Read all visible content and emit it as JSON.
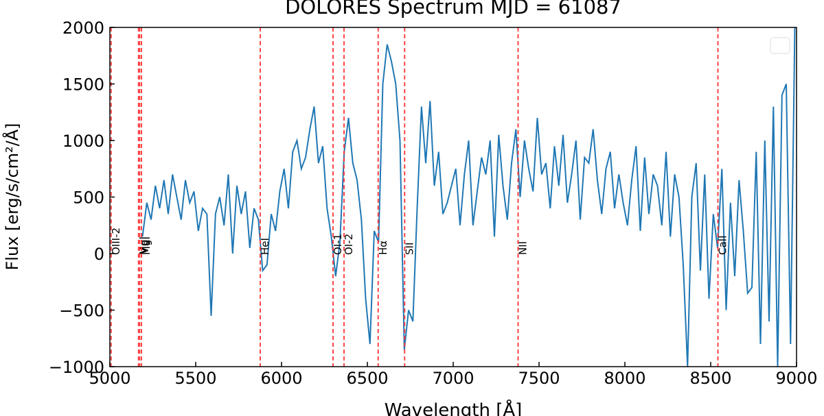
{
  "chart_data": {
    "type": "line",
    "title": "DOLORES Spectrum MJD = 61087",
    "x_label": "Wavelength [Å]",
    "y_label": "Flux [erg/s/cm²/Å]",
    "xlim": [
      5000,
      9000
    ],
    "ylim": [
      -1000,
      2000
    ],
    "xticks": [
      5000,
      5500,
      6000,
      6500,
      7000,
      7500,
      8000,
      8500,
      9000
    ],
    "yticks": [
      {
        "value": -1000,
        "label": "−1000"
      },
      {
        "value": -500,
        "label": "−500"
      },
      0,
      500,
      1000,
      1500,
      2000
    ],
    "x": [
      5190,
      5215,
      5240,
      5265,
      5290,
      5315,
      5340,
      5365,
      5390,
      5415,
      5440,
      5465,
      5490,
      5515,
      5540,
      5565,
      5590,
      5615,
      5640,
      5665,
      5690,
      5715,
      5740,
      5765,
      5790,
      5815,
      5840,
      5865,
      5890,
      5915,
      5940,
      5965,
      5990,
      6015,
      6040,
      6065,
      6090,
      6115,
      6140,
      6165,
      6190,
      6215,
      6240,
      6265,
      6290,
      6315,
      6340,
      6365,
      6390,
      6415,
      6440,
      6465,
      6490,
      6515,
      6540,
      6565,
      6590,
      6615,
      6640,
      6665,
      6690,
      6715,
      6740,
      6765,
      6790,
      6815,
      6840,
      6865,
      6890,
      6915,
      6940,
      6965,
      6990,
      7015,
      7040,
      7065,
      7090,
      7115,
      7140,
      7165,
      7190,
      7215,
      7240,
      7265,
      7290,
      7315,
      7340,
      7365,
      7390,
      7415,
      7440,
      7465,
      7490,
      7515,
      7540,
      7565,
      7590,
      7615,
      7640,
      7665,
      7690,
      7715,
      7740,
      7765,
      7790,
      7815,
      7840,
      7865,
      7890,
      7915,
      7940,
      7965,
      7990,
      8015,
      8040,
      8065,
      8090,
      8115,
      8140,
      8165,
      8190,
      8215,
      8240,
      8265,
      8290,
      8315,
      8340,
      8365,
      8390,
      8415,
      8440,
      8465,
      8490,
      8515,
      8540,
      8565,
      8590,
      8615,
      8640,
      8665,
      8690,
      8715,
      8740,
      8765,
      8790,
      8815,
      8840,
      8865,
      8890,
      8915,
      8940,
      8965,
      8990
    ],
    "series": [
      {
        "color": "#1f77b4",
        "values": [
          150,
          450,
          300,
          600,
          400,
          650,
          350,
          700,
          500,
          300,
          650,
          450,
          550,
          200,
          400,
          350,
          -550,
          350,
          500,
          250,
          700,
          0,
          600,
          350,
          550,
          50,
          400,
          300,
          -150,
          -100,
          350,
          200,
          550,
          750,
          400,
          900,
          1000,
          750,
          850,
          1100,
          1300,
          800,
          950,
          400,
          150,
          -200,
          100,
          900,
          1200,
          800,
          650,
          300,
          -400,
          -800,
          200,
          100,
          1500,
          1850,
          1700,
          1500,
          1000,
          -850,
          -500,
          -600,
          400,
          1300,
          800,
          1350,
          600,
          900,
          350,
          450,
          600,
          750,
          250,
          700,
          1000,
          250,
          550,
          850,
          700,
          1000,
          150,
          1050,
          600,
          300,
          800,
          1100,
          500,
          1000,
          750,
          550,
          1200,
          700,
          800,
          400,
          950,
          600,
          1050,
          450,
          700,
          1000,
          300,
          850,
          800,
          1100,
          650,
          350,
          750,
          900,
          400,
          700,
          450,
          250,
          650,
          950,
          200,
          850,
          350,
          700,
          600,
          250,
          900,
          150,
          700,
          500,
          -100,
          -1000,
          500,
          800,
          -150,
          700,
          -400,
          350,
          50,
          750,
          -500,
          450,
          -200,
          650,
          200,
          -350,
          -300,
          900,
          -800,
          1000,
          -600,
          1300,
          -1000,
          1400,
          1500,
          -800,
          2000
        ]
      }
    ],
    "reference_lines": [
      {
        "x": 5007,
        "label": "OIII-2"
      },
      {
        "x": 5167,
        "label": "MgI"
      },
      {
        "x": 5173,
        "label": "MgI"
      },
      {
        "x": 5184,
        "label": "MgI"
      },
      {
        "x": 5876,
        "label": "HeI"
      },
      {
        "x": 6300,
        "label": "OI-1"
      },
      {
        "x": 6364,
        "label": "OI-2"
      },
      {
        "x": 6563,
        "label": "Hα"
      },
      {
        "x": 6717,
        "label": "SII"
      },
      {
        "x": 7378,
        "label": "NII"
      },
      {
        "x": 8542,
        "label": "CaII"
      }
    ],
    "reference_color": "#ff3333"
  }
}
